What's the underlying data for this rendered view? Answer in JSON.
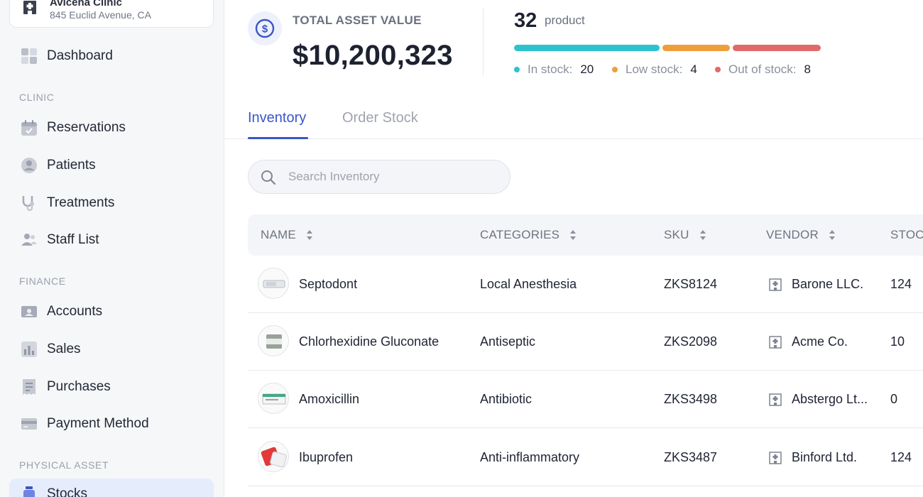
{
  "clinic": {
    "name": "Avicena Clinic",
    "address": "845 Euclid Avenue, CA"
  },
  "sidebar": {
    "dashboard": {
      "label": "Dashboard",
      "icon": "dashboard-icon"
    },
    "sections": [
      {
        "title": "CLINIC",
        "items": [
          {
            "label": "Reservations",
            "icon": "calendar-icon"
          },
          {
            "label": "Patients",
            "icon": "user-circle-icon"
          },
          {
            "label": "Treatments",
            "icon": "stethoscope-icon"
          },
          {
            "label": "Staff List",
            "icon": "users-icon"
          }
        ]
      },
      {
        "title": "FINANCE",
        "items": [
          {
            "label": "Accounts",
            "icon": "account-icon"
          },
          {
            "label": "Sales",
            "icon": "chart-icon"
          },
          {
            "label": "Purchases",
            "icon": "receipt-icon"
          },
          {
            "label": "Payment Method",
            "icon": "card-icon"
          }
        ]
      },
      {
        "title": "PHYSICAL ASSET",
        "items": [
          {
            "label": "Stocks",
            "icon": "bottle-icon",
            "active": true
          }
        ]
      }
    ]
  },
  "summary": {
    "asset_label": "TOTAL ASSET VALUE",
    "asset_value": "$10,200,323",
    "product_count": "32",
    "product_word": "product",
    "stock": {
      "in_stock_label": "In stock:",
      "in_stock_value": "20",
      "low_stock_label": "Low stock:",
      "low_stock_value": "4",
      "out_of_stock_label": "Out of stock:",
      "out_of_stock_value": "8",
      "colors": {
        "in": "#2cc3cf",
        "low": "#ee9f3c",
        "out": "#e06a6a"
      }
    }
  },
  "tabs": [
    {
      "label": "Inventory",
      "active": true
    },
    {
      "label": "Order Stock",
      "active": false
    }
  ],
  "search": {
    "placeholder": "Search Inventory",
    "value": ""
  },
  "table": {
    "columns": [
      "NAME",
      "CATEGORIES",
      "SKU",
      "VENDOR",
      "STOCK"
    ],
    "rows": [
      {
        "name": "Septodont",
        "category": "Local Anesthesia",
        "sku": "ZKS8124",
        "vendor": "Barone LLC.",
        "stock": "124"
      },
      {
        "name": "Chlorhexidine Gluconate",
        "category": "Antiseptic",
        "sku": "ZKS2098",
        "vendor": "Acme Co.",
        "stock": "10"
      },
      {
        "name": "Amoxicillin",
        "category": "Antibiotic",
        "sku": "ZKS3498",
        "vendor": "Abstergo Lt...",
        "stock": "0"
      },
      {
        "name": "Ibuprofen",
        "category": "Anti-inflammatory",
        "sku": "ZKS3487",
        "vendor": "Binford Ltd.",
        "stock": "124"
      }
    ]
  },
  "accent_color": "#3a56c5"
}
